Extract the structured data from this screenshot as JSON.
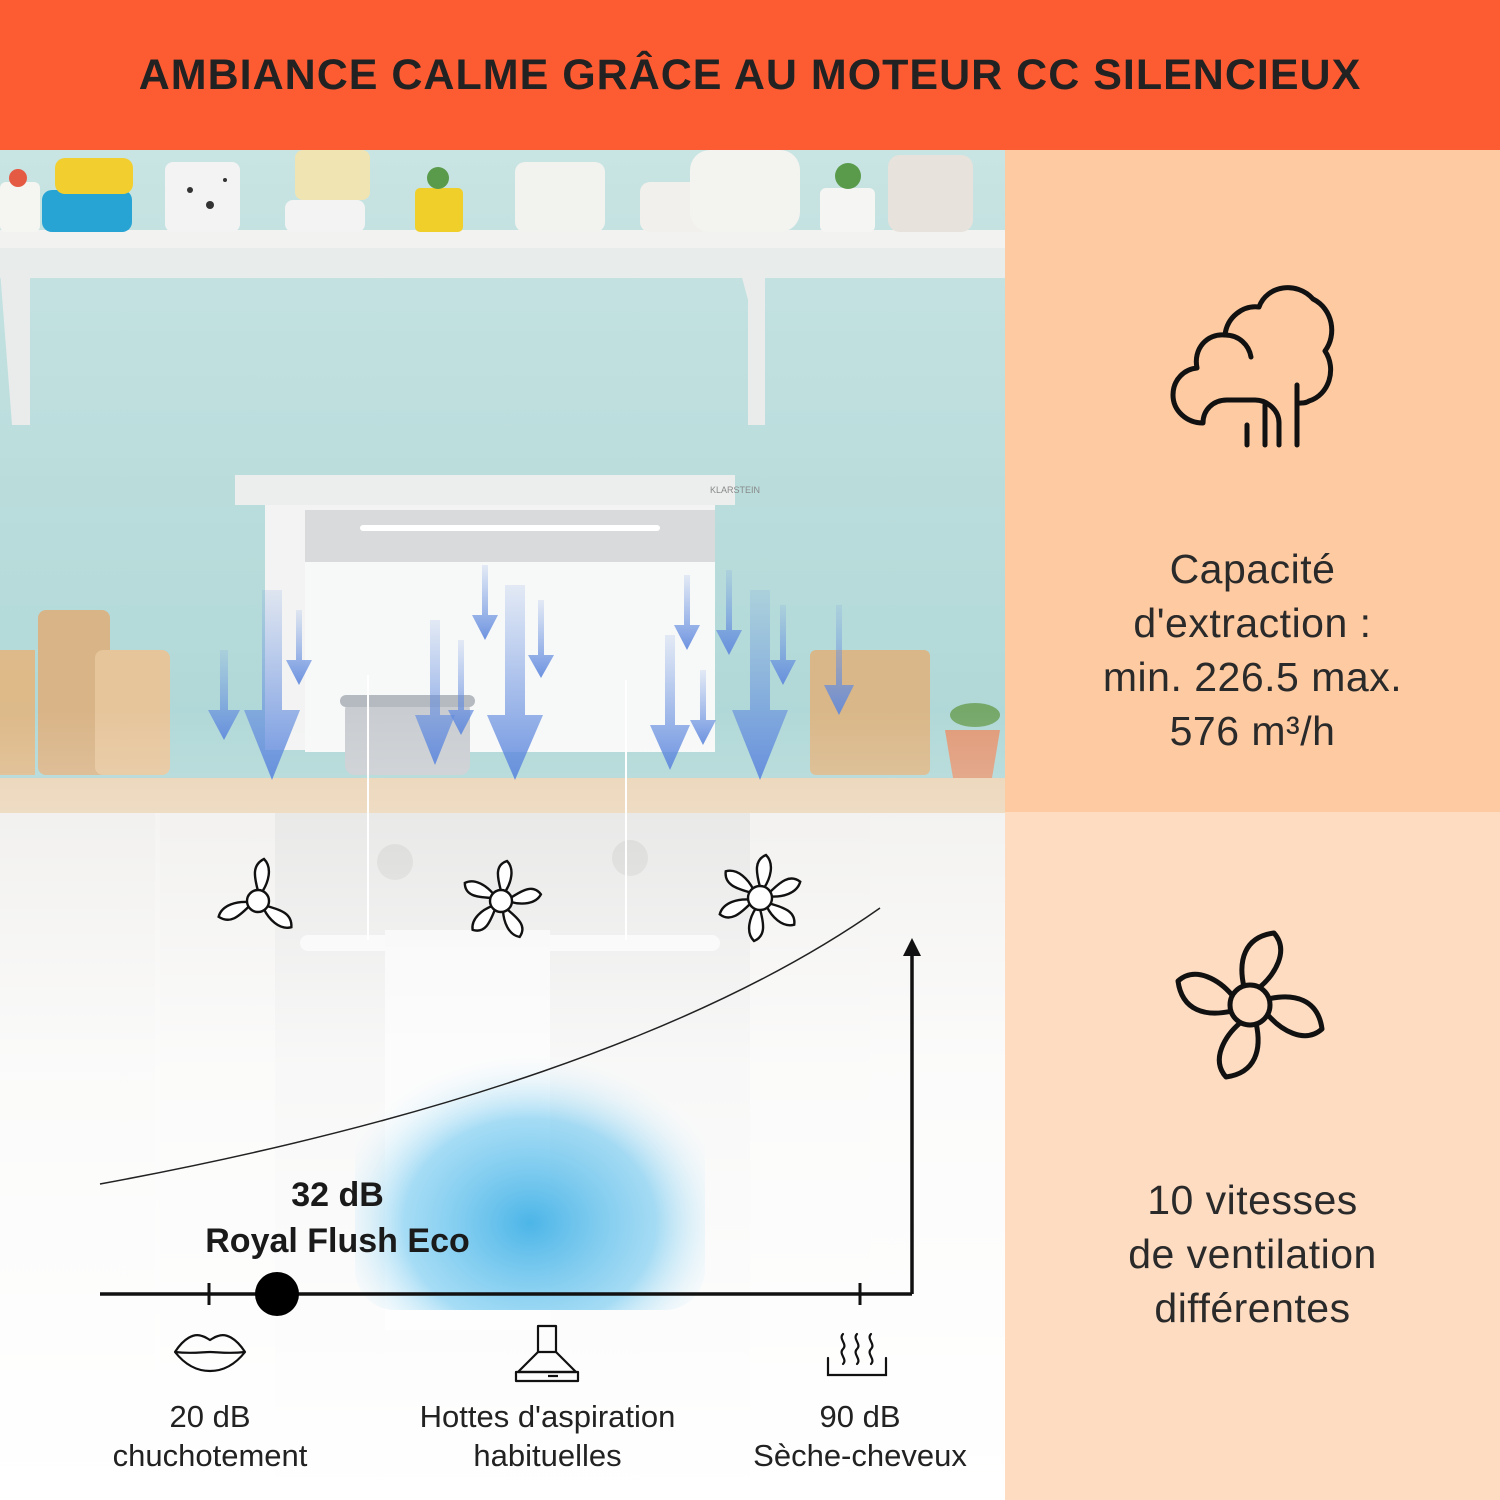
{
  "header": {
    "title": "AMBIANCE CALME GRÂCE AU MOTEUR CC SILENCIEUX"
  },
  "brand": {
    "hood_label": "KLARSTEIN"
  },
  "colors": {
    "header_bg": "#fd5c33",
    "panel_top_bg": "#fdcaa2",
    "panel_bottom_bg": "#fddcc2",
    "arrow_blue": "#6f97e4",
    "wall": "#b6dcda"
  },
  "chart_data": {
    "type": "line",
    "title": "",
    "xlabel": "",
    "ylabel": "",
    "highlight": {
      "value": "32 dB",
      "label": "Royal Flush Eco"
    },
    "ticks": [
      {
        "value": "20 dB",
        "label": "chuchotement",
        "icon": "lips-icon"
      },
      {
        "value": "",
        "label_lines": [
          "Hottes d'aspiration",
          "habituelles"
        ],
        "icon": "range-hood-icon"
      },
      {
        "value": "90 dB",
        "label": "Sèche-cheveux",
        "icon": "heat-waves-icon"
      }
    ]
  },
  "features": [
    {
      "icon": "steam-cloud-icon",
      "lines": [
        "Capacité",
        "d'extraction :",
        "min. 226.5 max.",
        "576 m³/h"
      ]
    },
    {
      "icon": "fan-icon",
      "lines": [
        "10 vitesses",
        "de ventilation",
        "différentes"
      ]
    }
  ]
}
